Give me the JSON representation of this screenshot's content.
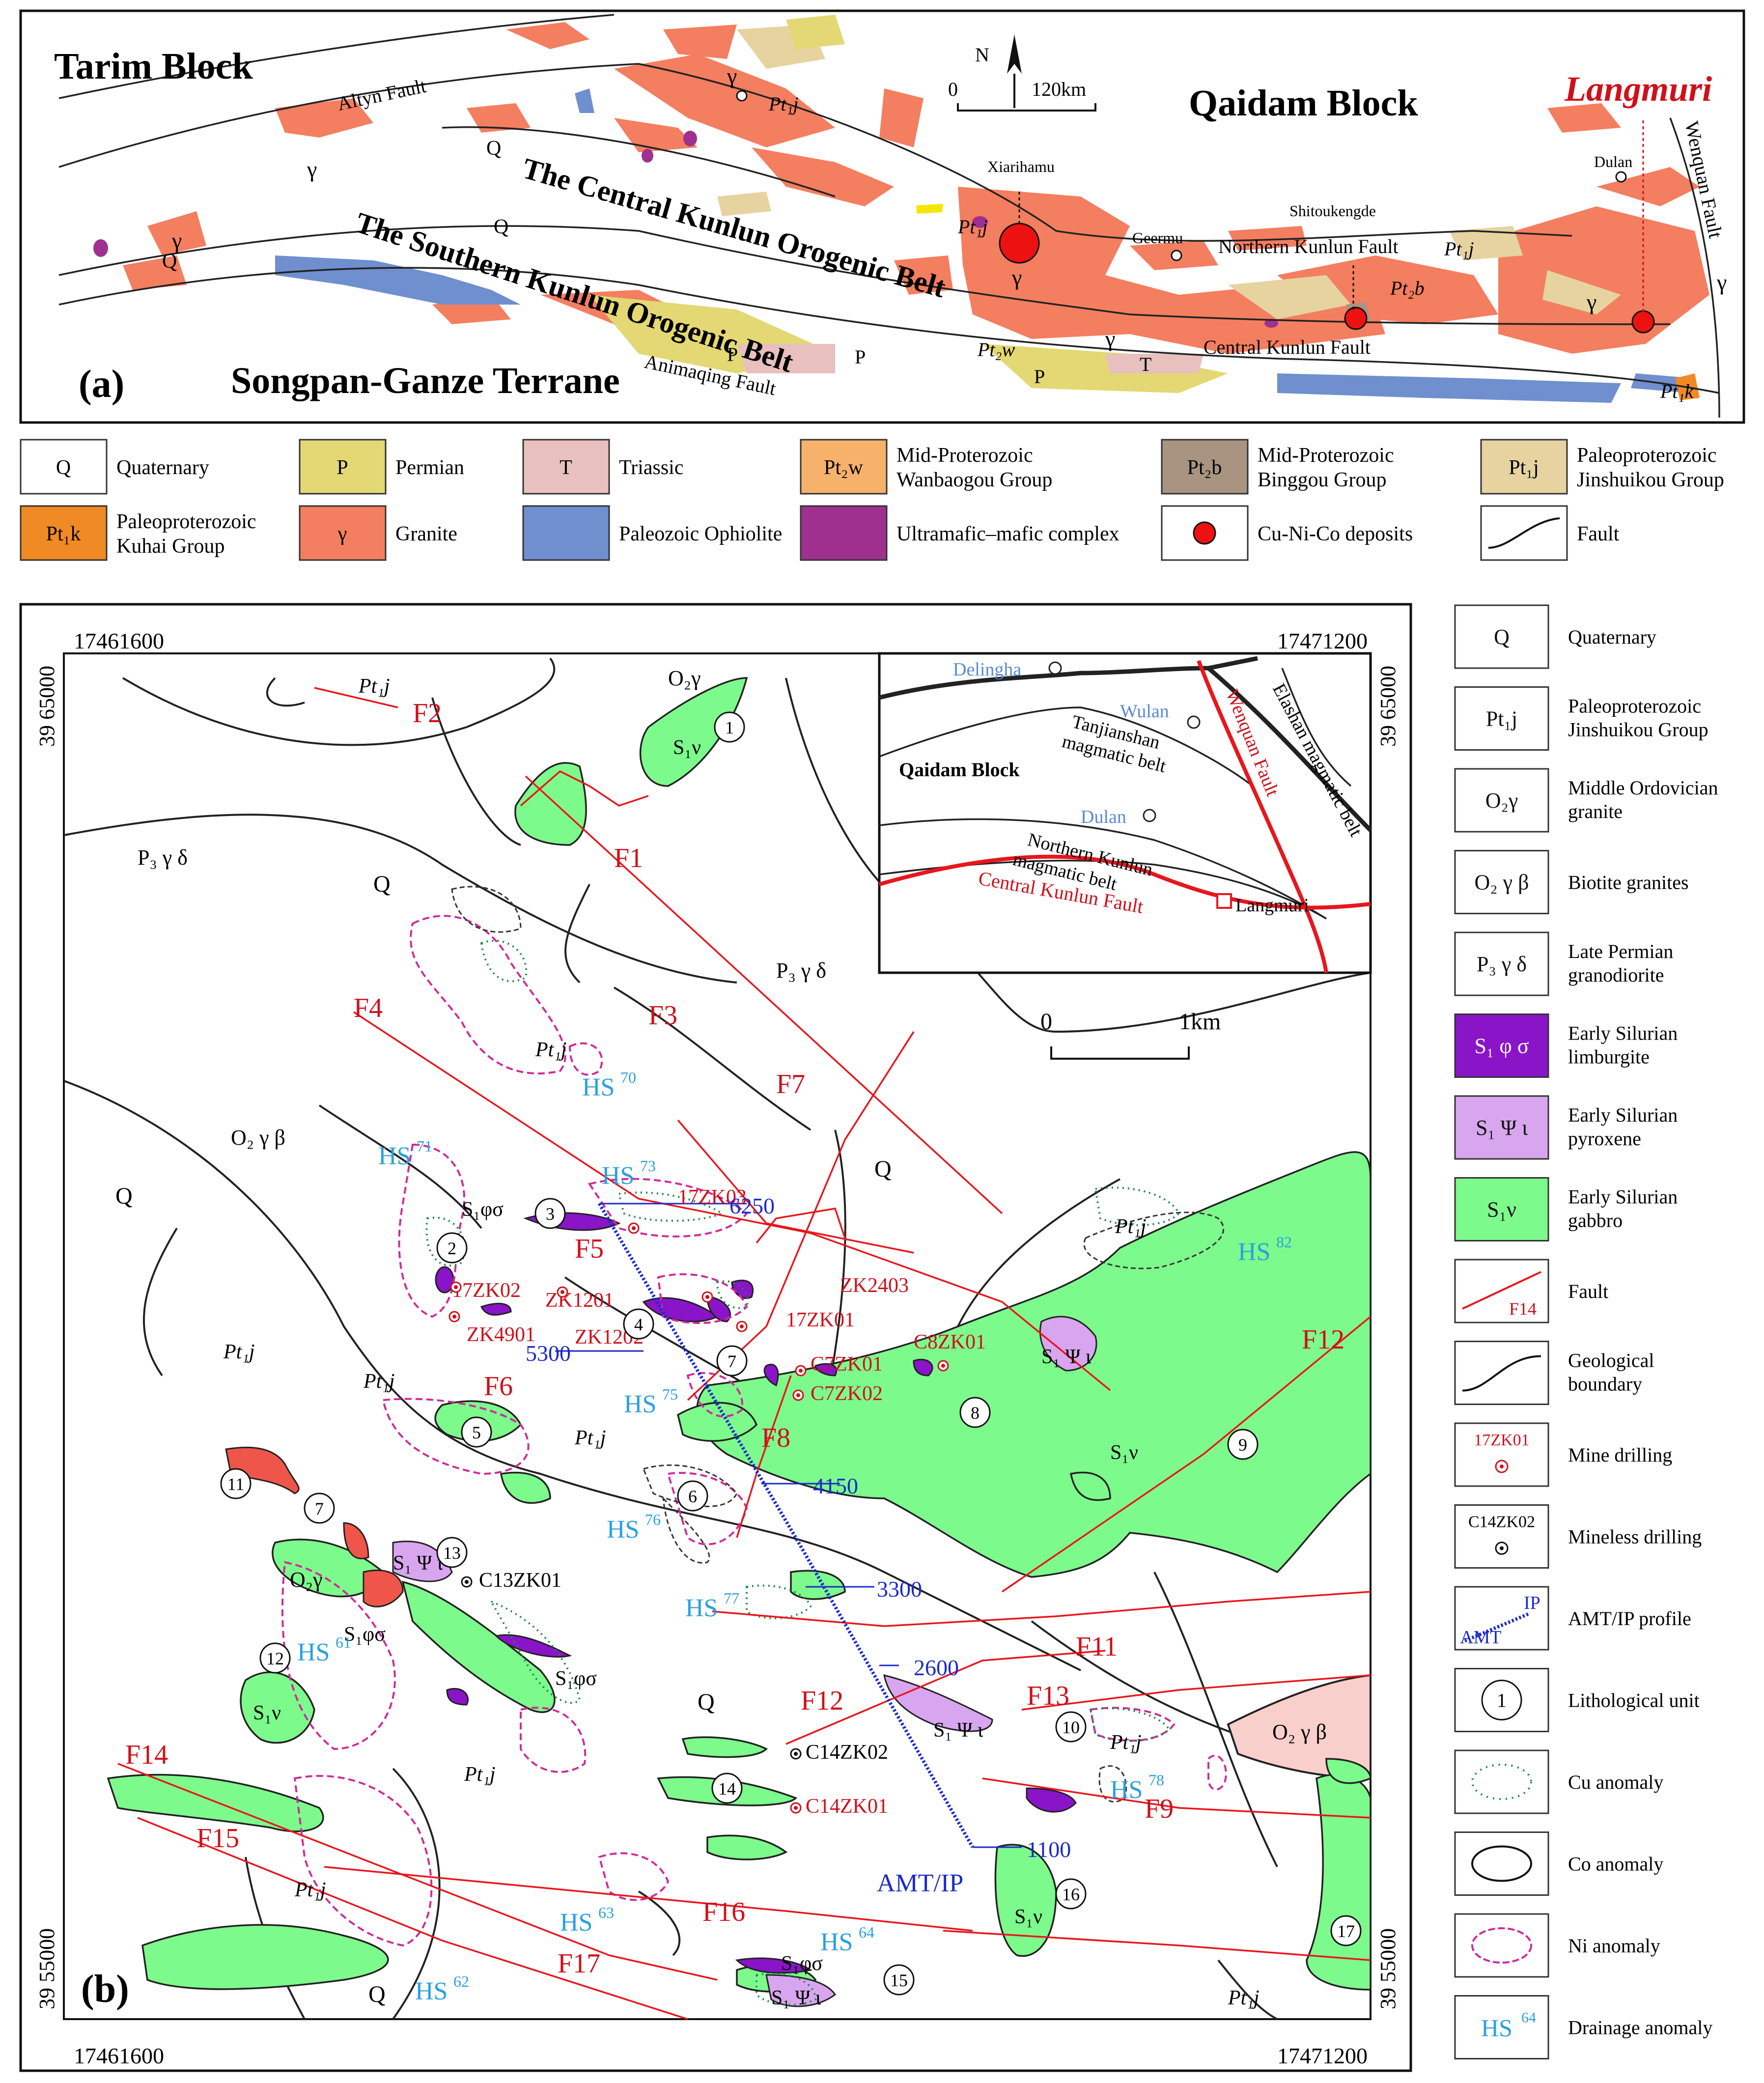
{
  "panel_a": {
    "label": "(a)",
    "titles": {
      "tarim": "Tarim Block",
      "qaidam": "Qaidam Block",
      "songpan": "Songpan-Ganze Terrane",
      "langmuri": "Langmuri",
      "central_belt": "The Central Kunlun Orogenic Belt",
      "southern_belt": "The Southern Kunlun  Orogenic Belt"
    },
    "faults": {
      "altyn": "Altyn Fault",
      "north_kunlun": "Northern Kunlun Fault",
      "central_kunlun": "Central Kunlun Fault",
      "animaqing": "Animaqing Fault",
      "wenquan": "Wenquan Fault"
    },
    "places": {
      "xiarihamu": "Xiarihamu",
      "geermu": "Geermu",
      "shitoukengde": "Shitoukengde",
      "dulan": "Dulan"
    },
    "scale": {
      "north": "N",
      "zero": "0",
      "dist": "120km"
    },
    "unit_labels": {
      "q": "Q",
      "gamma": "γ",
      "p": "P",
      "t": "T",
      "pt1j": "Pt₁j",
      "pt2w": "Pt₂w",
      "pt2b": "Pt₂b",
      "pt1k": "Pt₁k"
    }
  },
  "legend_a": [
    {
      "symbol": "Q",
      "text": [
        "Quaternary"
      ],
      "color": "#ffffff"
    },
    {
      "symbol": "P",
      "text": [
        "Permian"
      ],
      "color": "#e3d873"
    },
    {
      "symbol": "T",
      "text": [
        "Triassic"
      ],
      "color": "#e8c0bd"
    },
    {
      "symbol": "Pt₂w",
      "text": [
        "Mid-Proterozoic",
        "Wanbaogou Group"
      ],
      "color": "#f6b26b"
    },
    {
      "symbol": "Pt₂b",
      "text": [
        "Mid-Proterozoic",
        "Binggou Group"
      ],
      "color": "#a89480"
    },
    {
      "symbol": "Pt₁j",
      "text": [
        "Paleoproterozoic",
        "Jinshuikou Group"
      ],
      "color": "#e6d3a0"
    },
    {
      "symbol": "Pt₁k",
      "text": [
        "Paleoproterozoic",
        "Kuhai Group"
      ],
      "color": "#f08a24"
    },
    {
      "symbol": "γ",
      "text": [
        "Granite"
      ],
      "color": "#f47e60"
    },
    {
      "symbol": "",
      "text": [
        "Paleozoic Ophiolite"
      ],
      "color": "#6f8fce"
    },
    {
      "symbol": "",
      "text": [
        "Ultramafic–mafic complex"
      ],
      "color": "#a0308f"
    },
    {
      "symbol": "dot",
      "text": [
        "Cu-Ni-Co deposits"
      ],
      "color": "#ffffff"
    },
    {
      "symbol": "fault",
      "text": [
        "Fault"
      ],
      "color": "#ffffff"
    }
  ],
  "panel_b": {
    "label": "(b)",
    "coords": {
      "x_left": "17461600",
      "x_right": "17471200",
      "y_top": "39 65000",
      "y_bottom": "39 55000"
    },
    "scale": {
      "zero": "0",
      "dist": "1km"
    },
    "faults": [
      "F1",
      "F2",
      "F3",
      "F4",
      "F5",
      "F6",
      "F7",
      "F8",
      "F9",
      "F11",
      "F12",
      "F13",
      "F14",
      "F15",
      "F16",
      "F17"
    ],
    "units": {
      "q": "Q",
      "p3": "P₃ γ δ",
      "o2gb": "O₂ γ β",
      "o2g": "O₂γ",
      "pt1j": "Pt₁j",
      "s1v": "S₁ν",
      "s1fs": "S₁φσ",
      "s1pi": "S₁ Ψ ι"
    },
    "drainage": [
      "HS70",
      "HS71",
      "HS73",
      "HS75",
      "HS76",
      "HS77",
      "HS61",
      "HS63",
      "HS62",
      "HS64",
      "HS78",
      "HS82"
    ],
    "drills": {
      "mine": [
        "17ZK03",
        "17ZK02",
        "ZK1201",
        "ZK4901",
        "ZK1202",
        "ZK2403",
        "17ZK01",
        "C7ZK01",
        "C7ZK02",
        "C8ZK01",
        "C14ZK01"
      ],
      "mineless": [
        "C13ZK01",
        "C14ZK02"
      ]
    },
    "profile": {
      "name": "AMT/IP",
      "stations": [
        "6250",
        "5300",
        "4150",
        "3300",
        "2600",
        "1100"
      ]
    },
    "units_numbered": [
      "1",
      "2",
      "3",
      "4",
      "5",
      "6",
      "7",
      "8",
      "9",
      "10",
      "11",
      "12",
      "13",
      "14",
      "15",
      "16",
      "17"
    ],
    "inset": {
      "qaidam": "Qaidam Block",
      "delingha": "Delingha",
      "wulan": "Wulan",
      "dulan": "Dulan",
      "langmuri": "Langmuri",
      "tanjianshan": [
        "Tanjianshan",
        "magmatic belt"
      ],
      "northern_kunlun": [
        "Northern Kunlun",
        "magmatic belt"
      ],
      "elashan": "Elashan magmatic belt",
      "wenquan": "Wenquan Fault",
      "central": "Central Kunlun Fault"
    }
  },
  "legend_b": [
    {
      "symbol": "Q",
      "text": [
        "Quaternary"
      ],
      "color": "#ffffff"
    },
    {
      "symbol": "Pt₁j",
      "text": [
        "Paleoproterozoic",
        "Jinshuikou Group"
      ],
      "color": "#ffffff"
    },
    {
      "symbol": "O₂γ",
      "text": [
        "Middle Ordovician",
        "granite"
      ],
      "color": "#ffffff"
    },
    {
      "symbol": "O₂ γ  β",
      "text": [
        "Biotite granites"
      ],
      "color": "#ffffff"
    },
    {
      "symbol": "P₃ γ  δ",
      "text": [
        "Late Permian",
        "granodiorite"
      ],
      "color": "#ffffff"
    },
    {
      "symbol": "S₁ φ  σ",
      "text": [
        "Early Silurian",
        "limburgite"
      ],
      "color": "#8a14c8"
    },
    {
      "symbol": "S₁ Ψ  ι",
      "text": [
        "Early Silurian",
        "pyroxene"
      ],
      "color": "#d8a6ee"
    },
    {
      "symbol": "S₁ν",
      "text": [
        "Early Silurian",
        "gabbro"
      ],
      "color": "#7dfa8c"
    },
    {
      "symbol": "F14",
      "text": [
        "Fault"
      ],
      "color": "#ffffff"
    },
    {
      "symbol": "",
      "text": [
        "Geological",
        "boundary"
      ],
      "color": "#ffffff"
    },
    {
      "symbol": "17ZK01",
      "text": [
        "Mine drilling"
      ],
      "color": "#ffffff"
    },
    {
      "symbol": "C14ZK02",
      "text": [
        "Mineless drilling"
      ],
      "color": "#ffffff"
    },
    {
      "symbol": "IP AMT",
      "text": [
        "AMT/IP profile"
      ],
      "color": "#ffffff"
    },
    {
      "symbol": "1",
      "text": [
        "Lithological unit"
      ],
      "color": "#ffffff"
    },
    {
      "symbol": "",
      "text": [
        "Cu anomaly"
      ],
      "color": "#ffffff"
    },
    {
      "symbol": "",
      "text": [
        "Co anomaly"
      ],
      "color": "#ffffff"
    },
    {
      "symbol": "",
      "text": [
        "Ni anomaly"
      ],
      "color": "#ffffff"
    },
    {
      "symbol": "HS64",
      "text": [
        "Drainage anomaly"
      ],
      "color": "#ffffff"
    }
  ]
}
